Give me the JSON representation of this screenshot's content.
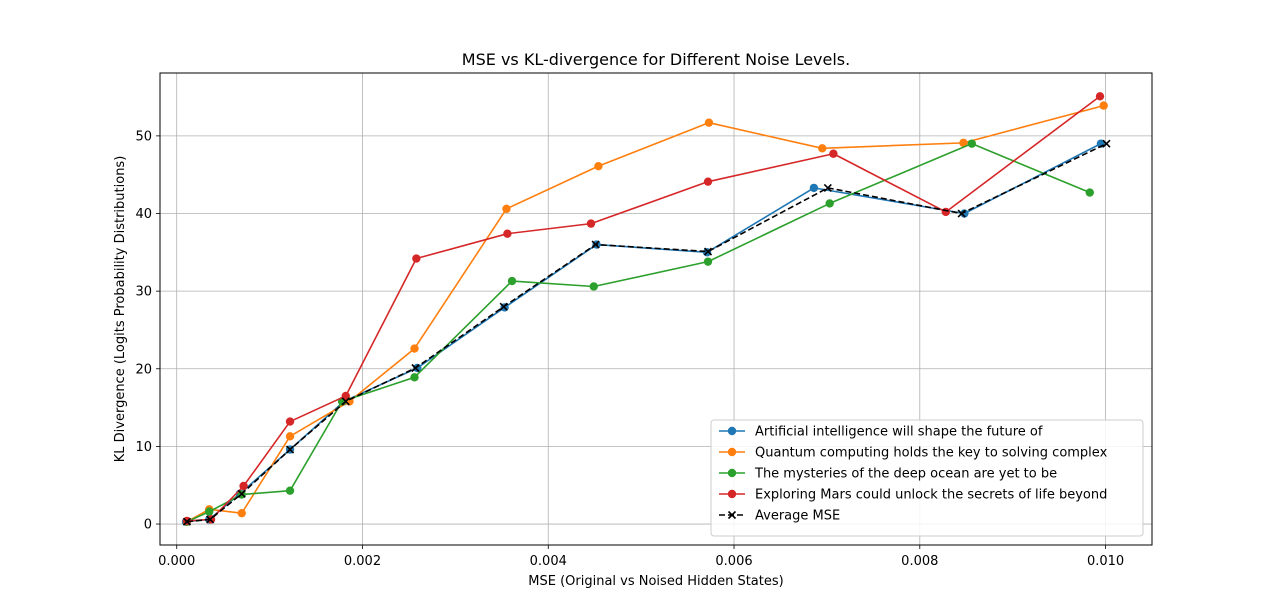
{
  "chart_data": {
    "type": "line",
    "title": "MSE vs KL-divergence for Different Noise Levels.",
    "xlabel": "MSE (Original vs Noised Hidden States)",
    "ylabel": "KL Divergence (Logits Probability Distributions)",
    "xlim": [
      -0.00018,
      0.0105
    ],
    "ylim": [
      -2.7,
      58.1
    ],
    "xticks": [
      0.0,
      0.002,
      0.004,
      0.006,
      0.008,
      0.01
    ],
    "xtick_labels": [
      "0.000",
      "0.002",
      "0.004",
      "0.006",
      "0.008",
      "0.010"
    ],
    "yticks": [
      0,
      10,
      20,
      30,
      40,
      50
    ],
    "ytick_labels": [
      "0",
      "10",
      "20",
      "30",
      "40",
      "50"
    ],
    "grid": true,
    "legend_position": "lower-right",
    "series": [
      {
        "name": "Artificial intelligence will shape the future of",
        "color": "#1f77b4",
        "marker": "circle",
        "linestyle": "solid",
        "x": [
          0.0001,
          0.00035,
          0.00068,
          0.00122,
          0.0018,
          0.00259,
          0.00353,
          0.00452,
          0.00571,
          0.00686,
          0.00848,
          0.00995
        ],
        "y": [
          0.3,
          0.6,
          3.9,
          9.6,
          15.8,
          20.1,
          27.9,
          36.0,
          35.0,
          43.3,
          40.0,
          49.0
        ]
      },
      {
        "name": "Quantum computing holds the key to solving complex",
        "color": "#ff7f0e",
        "marker": "circle",
        "linestyle": "solid",
        "x": [
          0.00011,
          0.00035,
          0.0007,
          0.00122,
          0.00186,
          0.00256,
          0.00355,
          0.00454,
          0.00573,
          0.00695,
          0.00847,
          0.00998
        ],
        "y": [
          0.3,
          1.9,
          1.4,
          11.3,
          15.8,
          22.6,
          40.6,
          46.1,
          51.7,
          48.4,
          49.1,
          53.9
        ]
      },
      {
        "name": "The mysteries of the deep ocean are yet to be",
        "color": "#2ca02c",
        "marker": "circle",
        "linestyle": "solid",
        "x": [
          0.00011,
          0.00035,
          0.0007,
          0.00122,
          0.00178,
          0.00256,
          0.00361,
          0.00449,
          0.00572,
          0.00703,
          0.00856,
          0.00983
        ],
        "y": [
          0.3,
          1.6,
          3.8,
          4.3,
          15.8,
          18.9,
          31.3,
          30.6,
          33.8,
          41.3,
          49.0,
          42.7
        ]
      },
      {
        "name": "Exploring Mars could unlock the secrets of life beyond",
        "color": "#d62728",
        "marker": "circle",
        "linestyle": "solid",
        "x": [
          0.00011,
          0.00037,
          0.00072,
          0.00122,
          0.00182,
          0.00258,
          0.00356,
          0.00446,
          0.00572,
          0.00707,
          0.00828,
          0.00994
        ],
        "y": [
          0.4,
          0.6,
          4.9,
          13.2,
          16.5,
          34.2,
          37.4,
          38.7,
          44.1,
          47.7,
          40.2,
          55.1
        ]
      },
      {
        "name": "Average MSE",
        "color": "#000000",
        "marker": "x",
        "linestyle": "dashed",
        "x": [
          0.00011,
          0.00036,
          0.0007,
          0.00122,
          0.00182,
          0.00257,
          0.00352,
          0.00451,
          0.00572,
          0.00701,
          0.00845,
          0.01001
        ],
        "y": [
          0.3,
          0.6,
          3.9,
          9.6,
          15.8,
          20.1,
          28.0,
          36.0,
          35.1,
          43.3,
          40.0,
          49.0
        ]
      }
    ]
  }
}
